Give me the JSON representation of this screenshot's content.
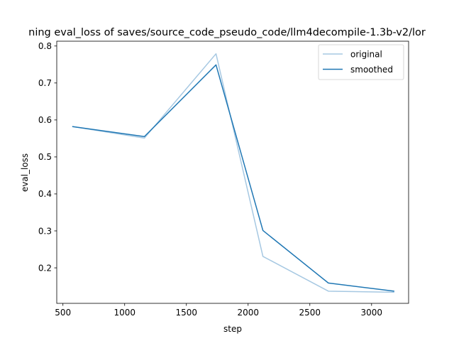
{
  "chart_data": {
    "type": "line",
    "title": "ning eval_loss of saves/source_code_pseudo_code/llm4decompile-1.3b-v2/lor",
    "xlabel": "step",
    "ylabel": "eval_loss",
    "xlim": [
      450,
      3300
    ],
    "ylim": [
      0.104,
      0.813
    ],
    "xticks": [
      500,
      1000,
      1500,
      2000,
      2500,
      3000
    ],
    "yticks": [
      0.2,
      0.3,
      0.4,
      0.5,
      0.6,
      0.7,
      0.8
    ],
    "grid": false,
    "legend_position": "top-right",
    "series": [
      {
        "name": "original",
        "color": "#a6c8e2",
        "x": [
          580,
          1160,
          1740,
          2120,
          2650,
          3180
        ],
        "y": [
          0.582,
          0.551,
          0.779,
          0.231,
          0.137,
          0.134
        ]
      },
      {
        "name": "smoothed",
        "color": "#1f77b4",
        "x": [
          580,
          1160,
          1740,
          2120,
          2650,
          3180
        ],
        "y": [
          0.582,
          0.555,
          0.749,
          0.301,
          0.159,
          0.137
        ]
      }
    ]
  }
}
